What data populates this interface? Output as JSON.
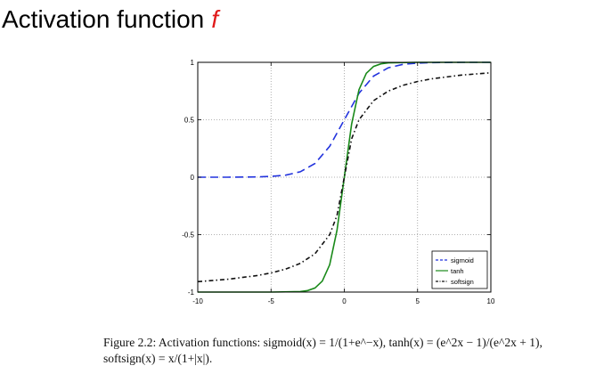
{
  "slide": {
    "title": "Activation function",
    "title_symbol": "f",
    "title_symbol_color": "#e01a1a"
  },
  "chart_data": {
    "type": "line",
    "xlim": [
      -10,
      10
    ],
    "ylim": [
      -1,
      1
    ],
    "x_ticks": [
      -10,
      -5,
      0,
      5,
      10
    ],
    "x_tick_labels": [
      "-10",
      "-5",
      "0",
      "5",
      "10"
    ],
    "y_ticks": [
      -1,
      -0.5,
      0,
      0.5,
      1
    ],
    "y_tick_labels": [
      "-1",
      "-0.5",
      "0",
      "0.5",
      "1"
    ],
    "grid": true,
    "legend_position": "bottom-right",
    "series": [
      {
        "name": "sigmoid",
        "color": "#2233dd",
        "style": "dashed",
        "x": [
          -10,
          -8,
          -6,
          -5,
          -4,
          -3,
          -2,
          -1,
          0,
          1,
          2,
          3,
          4,
          5,
          6,
          8,
          10
        ],
        "y": [
          0.0,
          0.0003,
          0.0025,
          0.0067,
          0.018,
          0.047,
          0.119,
          0.269,
          0.5,
          0.731,
          0.881,
          0.953,
          0.982,
          0.993,
          0.998,
          0.9997,
          1.0
        ]
      },
      {
        "name": "tanh",
        "color": "#1a8a1a",
        "style": "solid",
        "x": [
          -10,
          -5,
          -3,
          -2.5,
          -2,
          -1.5,
          -1,
          -0.5,
          0,
          0.5,
          1,
          1.5,
          2,
          2.5,
          3,
          5,
          10
        ],
        "y": [
          -1.0,
          -1.0,
          -0.995,
          -0.987,
          -0.964,
          -0.905,
          -0.762,
          -0.462,
          0.0,
          0.462,
          0.762,
          0.905,
          0.964,
          0.987,
          0.995,
          1.0,
          1.0
        ]
      },
      {
        "name": "softsign",
        "color": "#111111",
        "style": "dashdot",
        "x": [
          -10,
          -8,
          -6,
          -5,
          -4,
          -3,
          -2,
          -1,
          -0.5,
          0,
          0.5,
          1,
          2,
          3,
          4,
          5,
          6,
          8,
          10
        ],
        "y": [
          -0.909,
          -0.889,
          -0.857,
          -0.833,
          -0.8,
          -0.75,
          -0.667,
          -0.5,
          -0.333,
          0.0,
          0.333,
          0.5,
          0.667,
          0.75,
          0.8,
          0.833,
          0.857,
          0.889,
          0.909
        ]
      }
    ]
  },
  "caption": {
    "line1": "Figure 2.2: Activation functions: sigmoid(x) = 1/(1+e^−x), tanh(x) = (e^2x − 1)/(e^2x + 1),",
    "line2": "softsign(x) = x/(1+|x|)."
  }
}
